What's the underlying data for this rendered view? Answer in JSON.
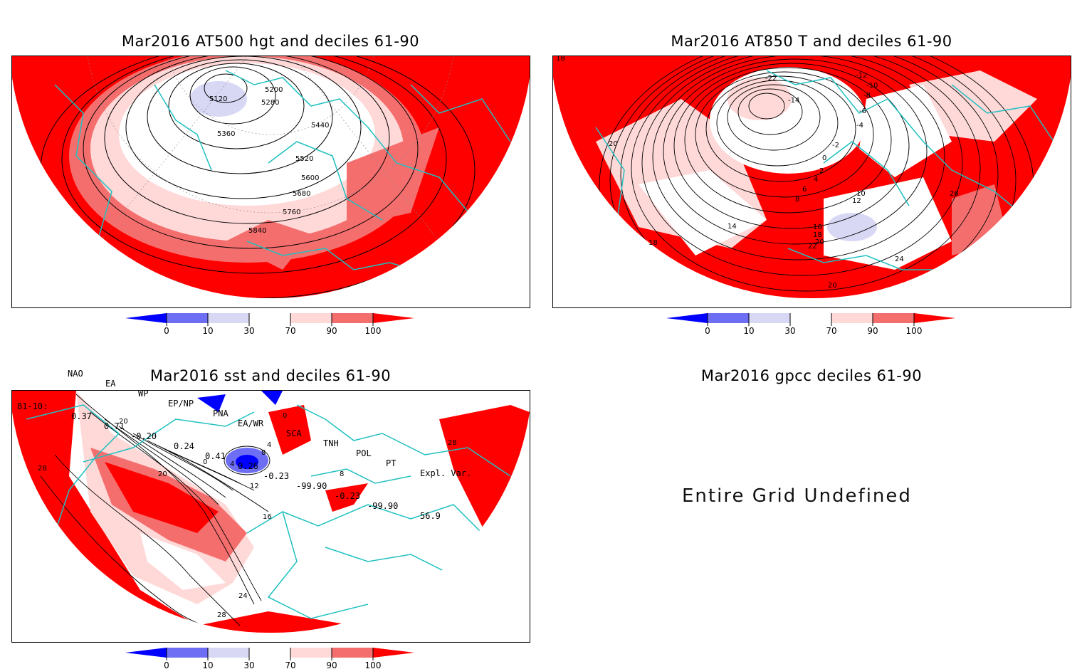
{
  "panels": {
    "p1": {
      "title": "Mar2016 AT500 hgt and deciles 61-90",
      "contour_labels": [
        "5120",
        "5200",
        "5280",
        "5360",
        "5440",
        "5520",
        "5600",
        "5680",
        "5760",
        "5840"
      ]
    },
    "p2": {
      "title": "Mar2016 AT850 T and deciles 61-90",
      "contour_labels": [
        "-22",
        "-14",
        "-12",
        "-10",
        "-8",
        "-6",
        "-4",
        "-2",
        "0",
        "2",
        "4",
        "6",
        "8",
        "10",
        "12",
        "14",
        "16",
        "18",
        "20",
        "22",
        "24",
        "26",
        "18",
        "20",
        "20"
      ]
    },
    "p3": {
      "title": "Mar2016 sst and deciles 61-90",
      "contour_labels": [
        "20",
        "28",
        "20",
        "0",
        "4",
        "8",
        "12",
        "16",
        "24",
        "28",
        "0",
        "4",
        "8",
        "28"
      ]
    },
    "p4": {
      "title": "Mar2016 gpcc deciles 61-90",
      "message": "Entire Grid Undefined"
    }
  },
  "colorbar": {
    "ticks": [
      "0",
      "10",
      "30",
      "70",
      "90",
      "100"
    ],
    "colors": [
      "#0000ff",
      "#6e6ef5",
      "#d8d8f5",
      "#ffffff",
      "#ffd8d8",
      "#f56e6e",
      "#ff0000"
    ]
  },
  "indices": {
    "headers": [
      "NAO",
      "EA",
      "WP",
      "EP/NP",
      "PNA",
      "EA/WR",
      "SCA",
      "TNH",
      "POL",
      "PT",
      "Expl. Var."
    ],
    "row_label": "81-10:",
    "values": [
      "0.37",
      "0.71",
      "-0.20",
      "0.24",
      "0.41",
      "0.26",
      "-0.23",
      "-99.90",
      "-0.23",
      "-99.90",
      "56.9"
    ]
  },
  "map_colors": {
    "land_outline": "#20c0c0",
    "red": "#ff0000",
    "mid_red": "#f56e6e",
    "light_red": "#ffd8d8",
    "light_blue": "#d8d8f5",
    "mid_blue": "#6e6ef5",
    "blue": "#0000ff"
  }
}
